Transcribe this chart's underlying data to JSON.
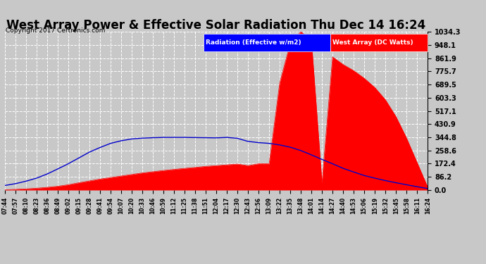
{
  "title": "West Array Power & Effective Solar Radiation Thu Dec 14 16:24",
  "copyright": "Copyright 2017 Certronics.com",
  "legend_blue": "Radiation (Effective w/m2)",
  "legend_red": "West Array (DC Watts)",
  "yticks": [
    0.0,
    86.2,
    172.4,
    258.6,
    344.8,
    430.9,
    517.1,
    603.3,
    689.5,
    775.7,
    861.9,
    948.1,
    1034.3
  ],
  "ymax": 1034.3,
  "bg_color": "#c8c8c8",
  "plot_bg": "#c8c8c8",
  "red_color": "#ff0000",
  "blue_color": "#0000cc",
  "grid_color": "#ffffff",
  "title_fontsize": 12,
  "xtick_labels": [
    "07:44",
    "07:57",
    "08:10",
    "08:23",
    "08:36",
    "08:49",
    "09:02",
    "09:15",
    "09:28",
    "09:41",
    "09:54",
    "10:07",
    "10:20",
    "10:33",
    "10:46",
    "10:59",
    "11:12",
    "11:25",
    "11:38",
    "11:51",
    "12:04",
    "12:17",
    "12:30",
    "12:43",
    "12:56",
    "13:09",
    "13:22",
    "13:35",
    "13:48",
    "14:01",
    "14:14",
    "14:27",
    "14:40",
    "14:53",
    "15:06",
    "15:19",
    "15:32",
    "15:45",
    "15:58",
    "16:11",
    "16:24"
  ],
  "red_data": [
    2,
    5,
    8,
    12,
    18,
    25,
    35,
    48,
    60,
    72,
    82,
    92,
    102,
    112,
    120,
    128,
    135,
    142,
    148,
    155,
    160,
    165,
    170,
    160,
    172,
    172,
    700,
    960,
    1034,
    980,
    50,
    870,
    820,
    780,
    730,
    670,
    590,
    480,
    340,
    180,
    20
  ],
  "blue_data": [
    30,
    42,
    58,
    78,
    105,
    138,
    172,
    210,
    248,
    278,
    305,
    322,
    334,
    339,
    342,
    344,
    344,
    344,
    343,
    342,
    341,
    344,
    338,
    318,
    310,
    305,
    295,
    280,
    258,
    230,
    200,
    172,
    142,
    118,
    95,
    78,
    62,
    48,
    35,
    22,
    10
  ]
}
